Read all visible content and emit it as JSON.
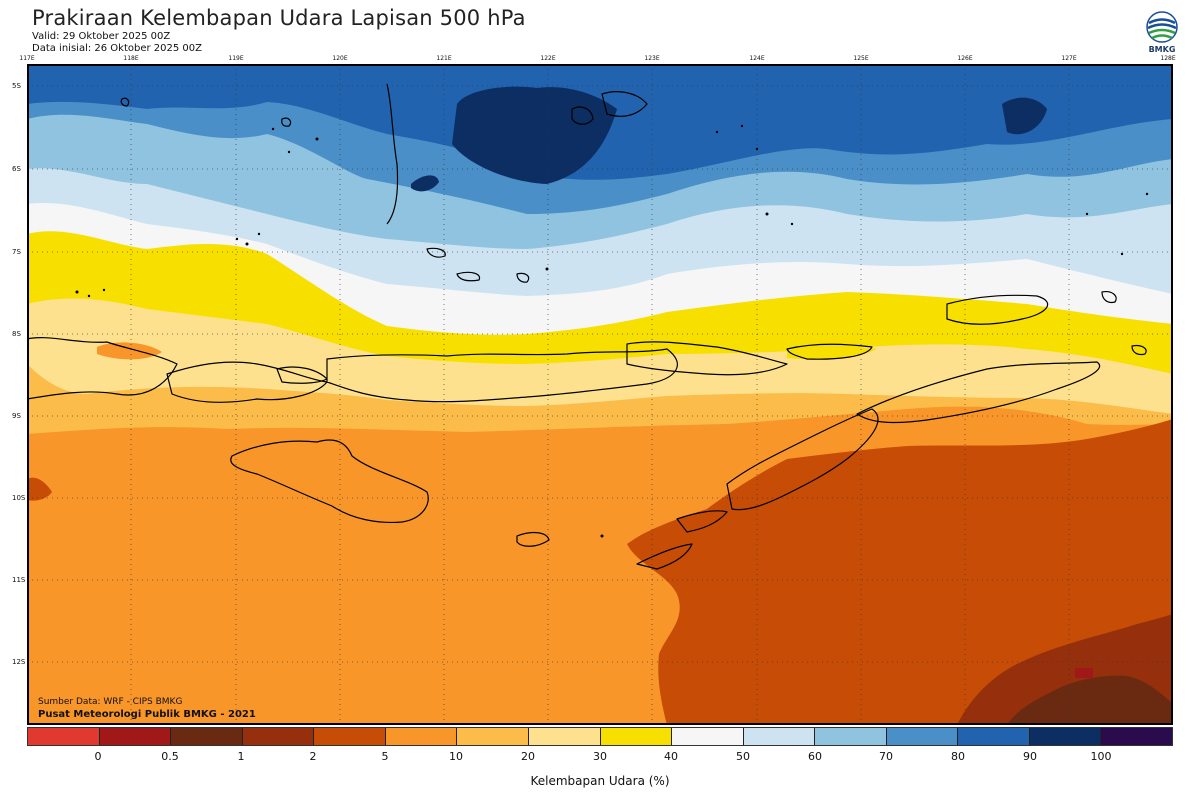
{
  "header": {
    "title": "Prakiraan Kelembapan Udara Lapisan 500 hPa",
    "valid": "Valid: 29 Oktober 2025 00Z",
    "init": "Data inisial: 26 Oktober 2025 00Z"
  },
  "logo": {
    "icon": "bmkg-logo-icon",
    "text": "BMKG"
  },
  "axes": {
    "lon_labels": [
      "117E",
      "118E",
      "119E",
      "120E",
      "121E",
      "122E",
      "123E",
      "124E",
      "125E",
      "126E",
      "127E",
      "128E"
    ],
    "lat_labels": [
      "5S",
      "6S",
      "7S",
      "8S",
      "9S",
      "10S",
      "11S",
      "12S"
    ]
  },
  "credits": {
    "source": "Sumber Data: WRF - CIPS BMKG",
    "org": "Pusat Meteorologi Publik BMKG - 2021"
  },
  "colorbar": {
    "colors": [
      "#e03a30",
      "#a01818",
      "#6a2a12",
      "#96300c",
      "#c74c06",
      "#f8962a",
      "#fbbc4a",
      "#fde18e",
      "#f7e000",
      "#f6f6f6",
      "#cde3f1",
      "#8fc3df",
      "#4a8fc8",
      "#2263af",
      "#0c2e62",
      "#2a0c4e"
    ],
    "ticks": [
      "0",
      "0.5",
      "1",
      "2",
      "5",
      "10",
      "20",
      "30",
      "40",
      "50",
      "60",
      "70",
      "80",
      "90",
      "100"
    ],
    "title": "Kelembapan Udara (%)"
  },
  "chart_data": {
    "type": "heatmap",
    "variable": "Relative humidity at 500 hPa (%)",
    "lon_range": [
      117,
      128
    ],
    "lat_range": [
      -4.6,
      -12.7
    ],
    "bands": [
      {
        "lat_from": -4.6,
        "lat_to": -6.3,
        "value_range": [
          80,
          100
        ],
        "note": "dark blue, very humid north"
      },
      {
        "lat_from": -6.3,
        "lat_to": -7.2,
        "value_range": [
          60,
          80
        ]
      },
      {
        "lat_from": -7.2,
        "lat_to": -7.9,
        "value_range": [
          40,
          60
        ]
      },
      {
        "lat_from": -7.9,
        "lat_to": -8.4,
        "value_range": [
          30,
          40
        ],
        "note": "yellow belt"
      },
      {
        "lat_from": -8.4,
        "lat_to": -9.4,
        "value_range": [
          10,
          30
        ]
      },
      {
        "lat_from": -9.4,
        "lat_to": -10.5,
        "value_range": [
          5,
          10
        ]
      },
      {
        "lat_from": -10.5,
        "lat_to": -12.7,
        "value_range": [
          1,
          10
        ],
        "note": "driest in southeast, local min near 126.5E 12.1S"
      }
    ]
  }
}
